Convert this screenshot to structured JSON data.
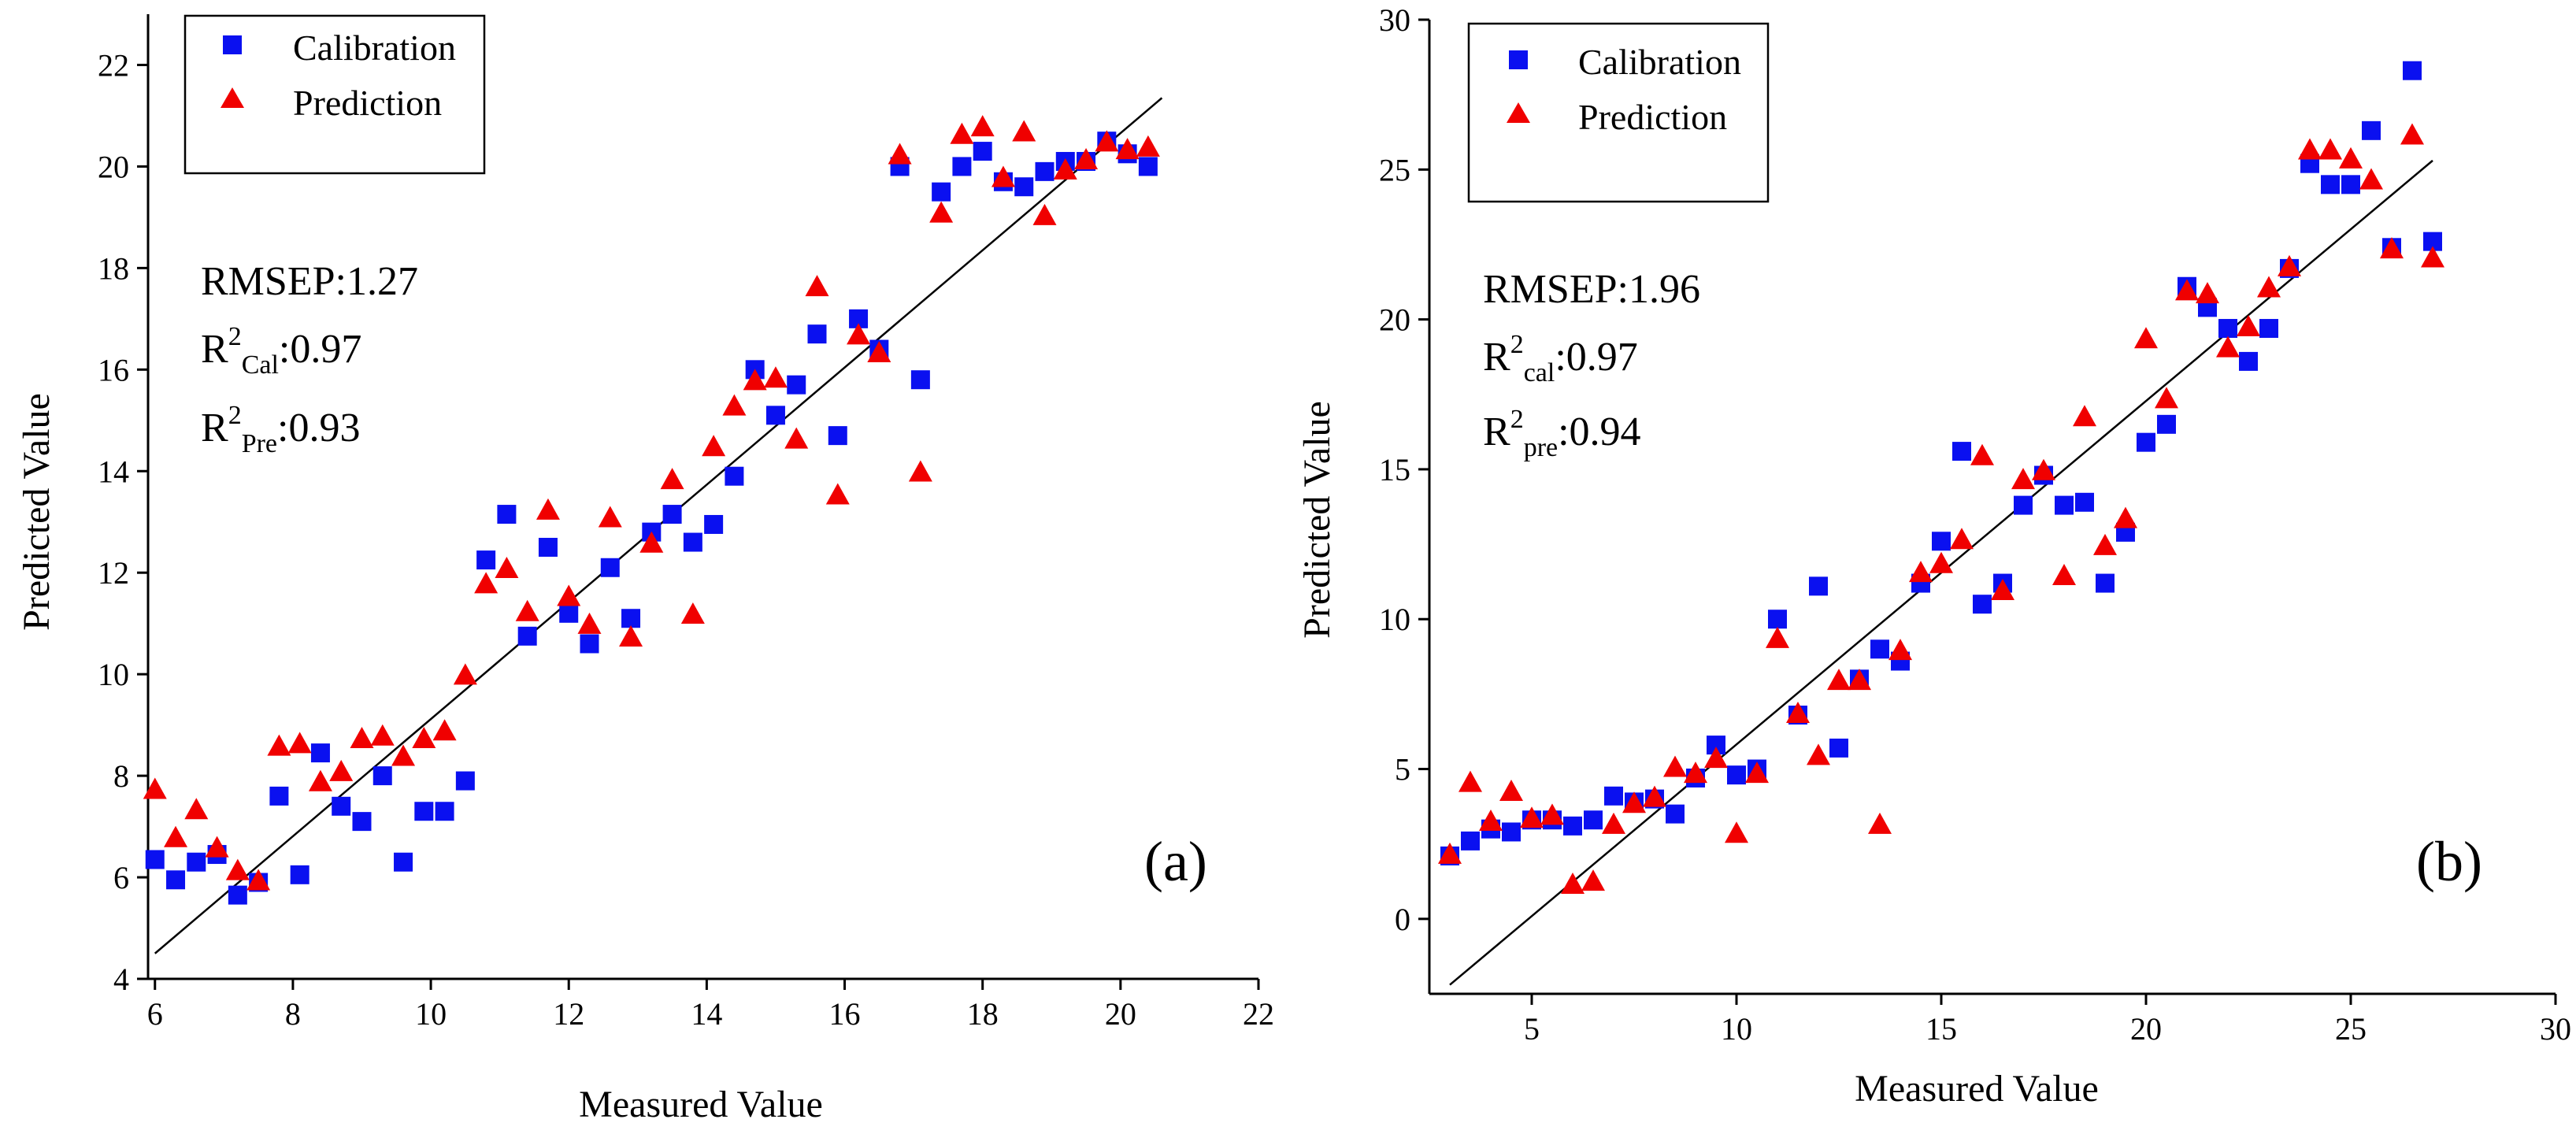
{
  "colors": {
    "calibration": "#0a10f0",
    "prediction": "#f00000"
  },
  "chart_data": [
    {
      "type": "scatter",
      "panel_label": "(a)",
      "xlabel": "Measured Value",
      "ylabel": "Predicted Value",
      "xlim": [
        5.9,
        22
      ],
      "ylim": [
        4,
        23
      ],
      "xticks": [
        6,
        8,
        10,
        12,
        14,
        16,
        18,
        20,
        22
      ],
      "yticks": [
        4,
        6,
        8,
        10,
        12,
        14,
        16,
        18,
        20,
        22
      ],
      "legend": {
        "position": "top-left",
        "entries": [
          "Calibration",
          "Prediction"
        ]
      },
      "stats": {
        "rmsep": {
          "label": "RMSEP:",
          "value": "1.27"
        },
        "r2cal": {
          "base": "R",
          "sup": "2",
          "sub": "Cal",
          "value": ":0.97"
        },
        "r2pre": {
          "base": "R",
          "sup": "2",
          "sub": "Pre",
          "value": ":0.93"
        }
      },
      "fit_line": [
        [
          6,
          4.5
        ],
        [
          20.6,
          21.35
        ]
      ],
      "series": [
        {
          "name": "Calibration",
          "marker": "square",
          "points": [
            [
              6.0,
              6.35
            ],
            [
              6.3,
              5.95
            ],
            [
              6.6,
              6.3
            ],
            [
              6.9,
              6.45
            ],
            [
              7.2,
              5.65
            ],
            [
              7.5,
              5.9
            ],
            [
              7.8,
              7.6
            ],
            [
              8.1,
              6.05
            ],
            [
              8.4,
              8.45
            ],
            [
              8.7,
              7.4
            ],
            [
              9.0,
              7.1
            ],
            [
              9.3,
              8.0
            ],
            [
              9.6,
              6.3
            ],
            [
              9.9,
              7.3
            ],
            [
              10.2,
              7.3
            ],
            [
              10.5,
              7.9
            ],
            [
              10.8,
              12.25
            ],
            [
              11.1,
              13.15
            ],
            [
              11.4,
              10.75
            ],
            [
              11.7,
              12.5
            ],
            [
              12.0,
              11.2
            ],
            [
              12.3,
              10.6
            ],
            [
              12.6,
              12.1
            ],
            [
              12.9,
              11.1
            ],
            [
              13.2,
              12.8
            ],
            [
              13.5,
              13.15
            ],
            [
              13.8,
              12.6
            ],
            [
              14.1,
              12.95
            ],
            [
              14.4,
              13.9
            ],
            [
              14.7,
              16.0
            ],
            [
              15.0,
              15.1
            ],
            [
              15.3,
              15.7
            ],
            [
              15.6,
              16.7
            ],
            [
              15.9,
              14.7
            ],
            [
              16.2,
              17.0
            ],
            [
              16.5,
              16.4
            ],
            [
              16.8,
              20.0
            ],
            [
              17.1,
              15.8
            ],
            [
              17.4,
              19.5
            ],
            [
              17.7,
              20.0
            ],
            [
              18.0,
              20.3
            ],
            [
              18.3,
              19.7
            ],
            [
              18.6,
              19.6
            ],
            [
              18.9,
              19.9
            ],
            [
              19.2,
              20.1
            ],
            [
              19.5,
              20.1
            ],
            [
              19.8,
              20.5
            ],
            [
              20.1,
              20.25
            ],
            [
              20.4,
              20.0
            ]
          ]
        },
        {
          "name": "Prediction",
          "marker": "triangle",
          "points": [
            [
              6.0,
              7.7
            ],
            [
              6.3,
              6.75
            ],
            [
              6.6,
              7.3
            ],
            [
              6.9,
              6.55
            ],
            [
              7.2,
              6.1
            ],
            [
              7.5,
              5.9
            ],
            [
              7.8,
              8.55
            ],
            [
              8.1,
              8.6
            ],
            [
              8.4,
              7.85
            ],
            [
              8.7,
              8.05
            ],
            [
              9.0,
              8.7
            ],
            [
              9.3,
              8.75
            ],
            [
              9.6,
              8.35
            ],
            [
              9.9,
              8.7
            ],
            [
              10.2,
              8.85
            ],
            [
              10.5,
              9.95
            ],
            [
              10.8,
              11.75
            ],
            [
              11.1,
              12.05
            ],
            [
              11.4,
              11.2
            ],
            [
              11.7,
              13.2
            ],
            [
              12.0,
              11.5
            ],
            [
              12.3,
              10.95
            ],
            [
              12.6,
              13.05
            ],
            [
              12.9,
              10.7
            ],
            [
              13.2,
              12.55
            ],
            [
              13.5,
              13.8
            ],
            [
              13.8,
              11.15
            ],
            [
              14.1,
              14.45
            ],
            [
              14.4,
              15.25
            ],
            [
              14.7,
              15.75
            ],
            [
              15.0,
              15.8
            ],
            [
              15.3,
              14.6
            ],
            [
              15.6,
              17.6
            ],
            [
              15.9,
              13.5
            ],
            [
              16.2,
              16.65
            ],
            [
              16.5,
              16.3
            ],
            [
              16.8,
              20.2
            ],
            [
              17.1,
              13.95
            ],
            [
              17.4,
              19.05
            ],
            [
              17.7,
              20.6
            ],
            [
              18.0,
              20.75
            ],
            [
              18.3,
              19.75
            ],
            [
              18.6,
              20.65
            ],
            [
              18.9,
              19.0
            ],
            [
              19.2,
              19.9
            ],
            [
              19.5,
              20.1
            ],
            [
              19.8,
              20.45
            ],
            [
              20.1,
              20.3
            ],
            [
              20.4,
              20.35
            ]
          ]
        }
      ]
    },
    {
      "type": "scatter",
      "panel_label": "(b)",
      "xlabel": "Measured Value",
      "ylabel": "Predicted Value",
      "xlim": [
        2.5,
        30
      ],
      "ylim": [
        -2.5,
        30
      ],
      "xticks": [
        5,
        10,
        15,
        20,
        25,
        30
      ],
      "yticks": [
        0,
        5,
        10,
        15,
        20,
        25,
        30
      ],
      "legend": {
        "position": "top-left",
        "entries": [
          "Calibration",
          "Prediction"
        ]
      },
      "stats": {
        "rmsep": {
          "label": "RMSEP:",
          "value": "1.96"
        },
        "r2cal": {
          "base": "R",
          "sup": "2",
          "sub": "cal",
          "value": ":0.97"
        },
        "r2pre": {
          "base": "R",
          "sup": "2",
          "sub": "pre",
          "value": ":0.94"
        }
      },
      "fit_line": [
        [
          3,
          -2.2
        ],
        [
          27,
          25.3
        ]
      ],
      "series": [
        {
          "name": "Calibration",
          "marker": "square",
          "points": [
            [
              3.0,
              2.1
            ],
            [
              3.5,
              2.6
            ],
            [
              4.0,
              3.0
            ],
            [
              4.5,
              2.9
            ],
            [
              5.0,
              3.3
            ],
            [
              5.5,
              3.3
            ],
            [
              6.0,
              3.1
            ],
            [
              6.5,
              3.3
            ],
            [
              7.0,
              4.1
            ],
            [
              7.5,
              3.9
            ],
            [
              8.0,
              4.0
            ],
            [
              8.5,
              3.5
            ],
            [
              9.0,
              4.7
            ],
            [
              9.5,
              5.8
            ],
            [
              10.0,
              4.8
            ],
            [
              10.5,
              5.0
            ],
            [
              11.0,
              10.0
            ],
            [
              11.5,
              6.8
            ],
            [
              12.0,
              11.1
            ],
            [
              12.5,
              5.7
            ],
            [
              13.0,
              8.0
            ],
            [
              13.5,
              9.0
            ],
            [
              14.0,
              8.6
            ],
            [
              14.5,
              11.2
            ],
            [
              15.0,
              12.6
            ],
            [
              15.5,
              15.6
            ],
            [
              16.0,
              10.5
            ],
            [
              16.5,
              11.2
            ],
            [
              17.0,
              13.8
            ],
            [
              17.5,
              14.8
            ],
            [
              18.0,
              13.8
            ],
            [
              18.5,
              13.9
            ],
            [
              19.0,
              11.2
            ],
            [
              19.5,
              12.9
            ],
            [
              20.0,
              15.9
            ],
            [
              20.5,
              16.5
            ],
            [
              21.0,
              21.1
            ],
            [
              21.5,
              20.4
            ],
            [
              22.0,
              19.7
            ],
            [
              22.5,
              18.6
            ],
            [
              23.0,
              19.7
            ],
            [
              23.5,
              21.7
            ],
            [
              24.0,
              25.2
            ],
            [
              24.5,
              24.5
            ],
            [
              25.0,
              24.5
            ],
            [
              25.5,
              26.3
            ],
            [
              26.0,
              22.4
            ],
            [
              26.5,
              28.3
            ],
            [
              27.0,
              22.6
            ]
          ]
        },
        {
          "name": "Prediction",
          "marker": "triangle",
          "points": [
            [
              3.0,
              2.1
            ],
            [
              3.5,
              4.5
            ],
            [
              4.0,
              3.2
            ],
            [
              4.5,
              4.2
            ],
            [
              5.0,
              3.3
            ],
            [
              5.5,
              3.4
            ],
            [
              6.0,
              1.1
            ],
            [
              6.5,
              1.2
            ],
            [
              7.0,
              3.1
            ],
            [
              7.5,
              3.8
            ],
            [
              8.0,
              4.0
            ],
            [
              8.5,
              5.0
            ],
            [
              9.0,
              4.8
            ],
            [
              9.5,
              5.3
            ],
            [
              10.0,
              2.8
            ],
            [
              10.5,
              4.8
            ],
            [
              11.0,
              9.3
            ],
            [
              11.5,
              6.8
            ],
            [
              12.0,
              5.4
            ],
            [
              12.5,
              7.9
            ],
            [
              13.0,
              7.9
            ],
            [
              13.5,
              3.1
            ],
            [
              14.0,
              8.9
            ],
            [
              14.5,
              11.5
            ],
            [
              15.0,
              11.8
            ],
            [
              15.5,
              12.6
            ],
            [
              16.0,
              15.4
            ],
            [
              16.5,
              10.9
            ],
            [
              17.0,
              14.6
            ],
            [
              17.5,
              14.9
            ],
            [
              18.0,
              11.4
            ],
            [
              18.5,
              16.7
            ],
            [
              19.0,
              12.4
            ],
            [
              19.5,
              13.3
            ],
            [
              20.0,
              19.3
            ],
            [
              20.5,
              17.3
            ],
            [
              21.0,
              20.9
            ],
            [
              21.5,
              20.8
            ],
            [
              22.0,
              19.0
            ],
            [
              22.5,
              19.7
            ],
            [
              23.0,
              21.0
            ],
            [
              23.5,
              21.7
            ],
            [
              24.0,
              25.6
            ],
            [
              24.5,
              25.6
            ],
            [
              25.0,
              25.3
            ],
            [
              25.5,
              24.6
            ],
            [
              26.0,
              22.3
            ],
            [
              26.5,
              26.1
            ],
            [
              27.0,
              22.0
            ]
          ]
        }
      ]
    }
  ]
}
